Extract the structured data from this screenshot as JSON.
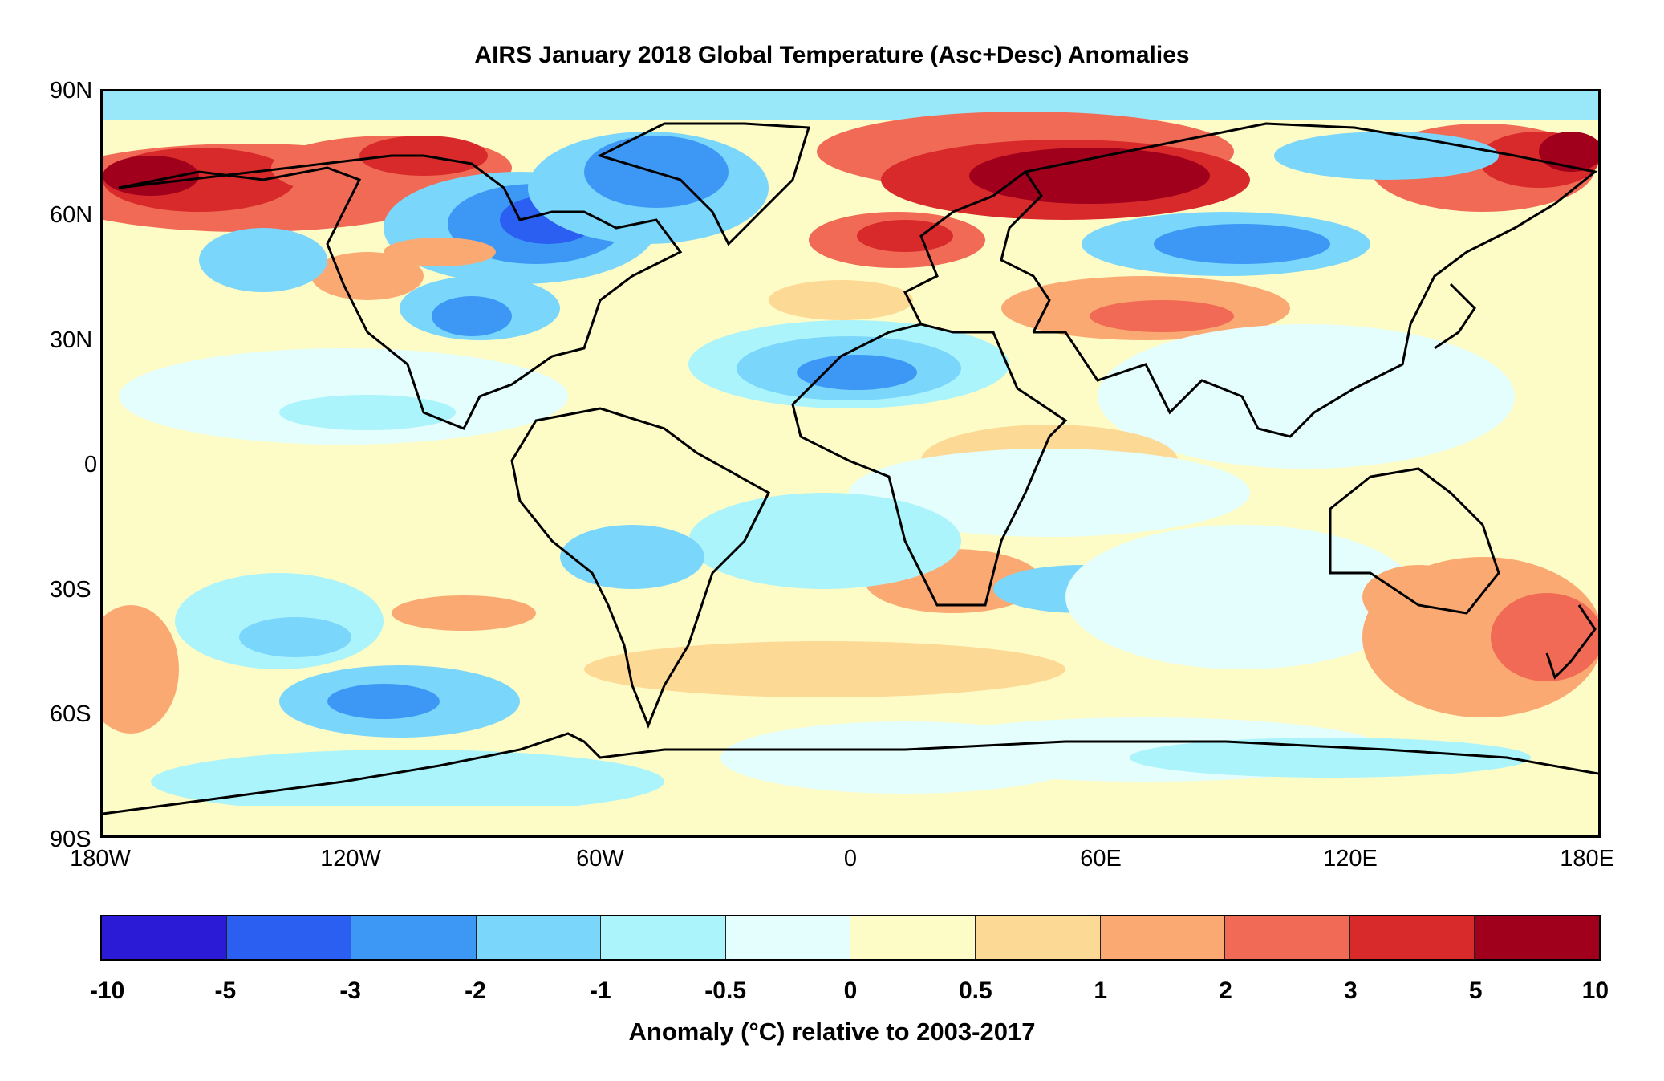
{
  "title": "AIRS January 2018 Global Temperature (Asc+Desc) Anomalies",
  "lat_labels": [
    "90N",
    "60N",
    "30N",
    "0",
    "30S",
    "60S",
    "90S"
  ],
  "lon_labels": [
    "180W",
    "120W",
    "60W",
    "0",
    "60E",
    "120E",
    "180E"
  ],
  "colorbar": {
    "ticks": [
      "-10",
      "-5",
      "-3",
      "-2",
      "-1",
      "-0.5",
      "0",
      "0.5",
      "1",
      "2",
      "3",
      "5",
      "10"
    ],
    "colors": [
      "#2b1ad6",
      "#2a5ff2",
      "#3d98f5",
      "#7ad6fb",
      "#acf4fb",
      "#e4fdfd",
      "#fefcc6",
      "#fdd996",
      "#fba972",
      "#f06a55",
      "#d82a2a",
      "#a0001c"
    ],
    "caption": "Anomaly (°C) relative to 2003-2017"
  },
  "chart_data": {
    "type": "heatmap",
    "title": "AIRS January 2018 Global Temperature (Asc+Desc) Anomalies",
    "x_ticks": [
      "180W",
      "120W",
      "60W",
      "0",
      "60E",
      "120E",
      "180E"
    ],
    "y_ticks": [
      "90N",
      "60N",
      "30N",
      "0",
      "30S",
      "60S",
      "90S"
    ],
    "xlim": [
      -180,
      180
    ],
    "ylim": [
      -90,
      90
    ],
    "colorbar_label": "Anomaly (°C) relative to 2003-2017",
    "bins": [
      -10,
      -5,
      -3,
      -2,
      -1,
      -0.5,
      0,
      0.5,
      1,
      2,
      3,
      5,
      10
    ],
    "regions": [
      {
        "lon": [
          -180,
          -150
        ],
        "lat": [
          58,
          75
        ],
        "bin": 11
      },
      {
        "lon": [
          -150,
          -95
        ],
        "lat": [
          65,
          80
        ],
        "bin": 10
      },
      {
        "lon": [
          -100,
          -80
        ],
        "lat": [
          45,
          55
        ],
        "bin": 9
      },
      {
        "lon": [
          -120,
          -105
        ],
        "lat": [
          33,
          46
        ],
        "bin": 9
      },
      {
        "lon": [
          -95,
          -65
        ],
        "lat": [
          50,
          65
        ],
        "bin": 2
      },
      {
        "lon": [
          -85,
          -70
        ],
        "lat": [
          52,
          62
        ],
        "bin": 1
      },
      {
        "lon": [
          -60,
          -20
        ],
        "lat": [
          62,
          82
        ],
        "bin": 2
      },
      {
        "lon": [
          -95,
          -75
        ],
        "lat": [
          24,
          38
        ],
        "bin": 2
      },
      {
        "lon": [
          -20,
          60
        ],
        "lat": [
          72,
          85
        ],
        "bin": 10
      },
      {
        "lon": [
          40,
          110
        ],
        "lat": [
          58,
          72
        ],
        "bin": 11
      },
      {
        "lon": [
          0,
          45
        ],
        "lat": [
          44,
          58
        ],
        "bin": 10
      },
      {
        "lon": [
          60,
          110
        ],
        "lat": [
          45,
          55
        ],
        "bin": 2
      },
      {
        "lon": [
          70,
          95
        ],
        "lat": [
          48,
          53
        ],
        "bin": 1
      },
      {
        "lon": [
          60,
          100
        ],
        "lat": [
          32,
          42
        ],
        "bin": 9
      },
      {
        "lon": [
          0,
          40
        ],
        "lat": [
          10,
          25
        ],
        "bin": 2
      },
      {
        "lon": [
          15,
          30
        ],
        "lat": [
          14,
          22
        ],
        "bin": 1
      },
      {
        "lon": [
          15,
          35
        ],
        "lat": [
          -30,
          -18
        ],
        "bin": 9
      },
      {
        "lon": [
          150,
          180
        ],
        "lat": [
          -50,
          -30
        ],
        "bin": 9
      },
      {
        "lon": [
          155,
          180
        ],
        "lat": [
          60,
          75
        ],
        "bin": 11
      },
      {
        "lon": [
          -60,
          -30
        ],
        "lat": [
          -35,
          -20
        ],
        "bin": 3
      },
      {
        "lon": [
          -150,
          -110
        ],
        "lat": [
          -65,
          -50
        ],
        "bin": 3
      },
      {
        "lon": [
          -140,
          -100
        ],
        "lat": [
          50,
          58
        ],
        "bin": 3
      }
    ]
  }
}
